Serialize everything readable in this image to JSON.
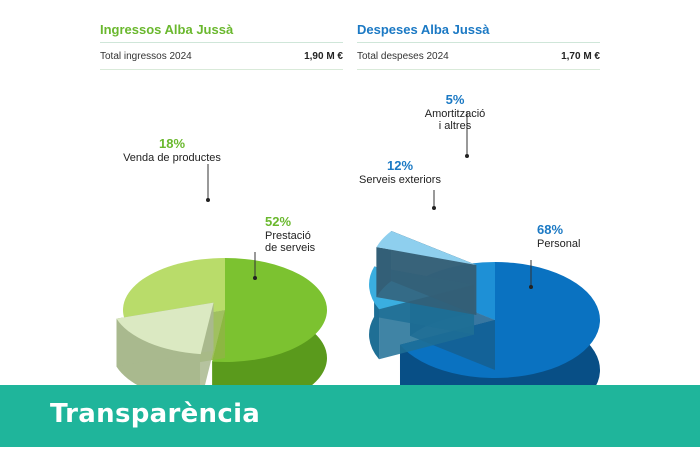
{
  "income": {
    "title": "Ingressos Alba Jussà",
    "total_label": "Total ingressos 2024",
    "total_value": "1,90 M €"
  },
  "expenses": {
    "title": "Despeses Alba Jussà",
    "total_label": "Total despeses 2024",
    "total_value": "1,70 M €"
  },
  "banner": {
    "title": "Transparència"
  },
  "colors": {
    "income_accent": "#6ab82e",
    "expense_accent": "#1b79c4",
    "banner": "#1fb59b"
  },
  "chart_data": [
    {
      "type": "pie",
      "title": "Ingressos Alba Jussà",
      "slices": [
        {
          "percent": "52%",
          "value": 52,
          "label_lines": [
            "Prestació",
            "de serveis"
          ],
          "color": "#7cc230",
          "side": "#5a9a1c",
          "exploded": false
        },
        {
          "percent": "18%",
          "value": 18,
          "label_lines": [
            "Venda de productes"
          ],
          "color": "#dbe9c2",
          "side": "#a9b98e",
          "exploded": true
        },
        {
          "percent": "",
          "value": 30,
          "label_lines": [],
          "color": "#b9dc6a",
          "side": "#8fb544",
          "exploded": false
        }
      ]
    },
    {
      "type": "pie",
      "title": "Despeses Alba Jussà",
      "slices": [
        {
          "percent": "68%",
          "value": 68,
          "label_lines": [
            "Personal"
          ],
          "color": "#0a72c1",
          "side": "#084f86",
          "exploded": false
        },
        {
          "percent": "12%",
          "value": 12,
          "label_lines": [
            "Serveis exteriors"
          ],
          "color": "#3aaee0",
          "side": "#1f6f95",
          "exploded": true
        },
        {
          "percent": "5%",
          "value": 5,
          "label_lines": [
            "Amortització",
            "i altres"
          ],
          "color": "#8ecfee",
          "side": "#345f77",
          "exploded": true
        },
        {
          "percent": "",
          "value": 15,
          "label_lines": [],
          "color": "#1e90d6",
          "side": "#155f90",
          "exploded": false
        }
      ]
    }
  ]
}
